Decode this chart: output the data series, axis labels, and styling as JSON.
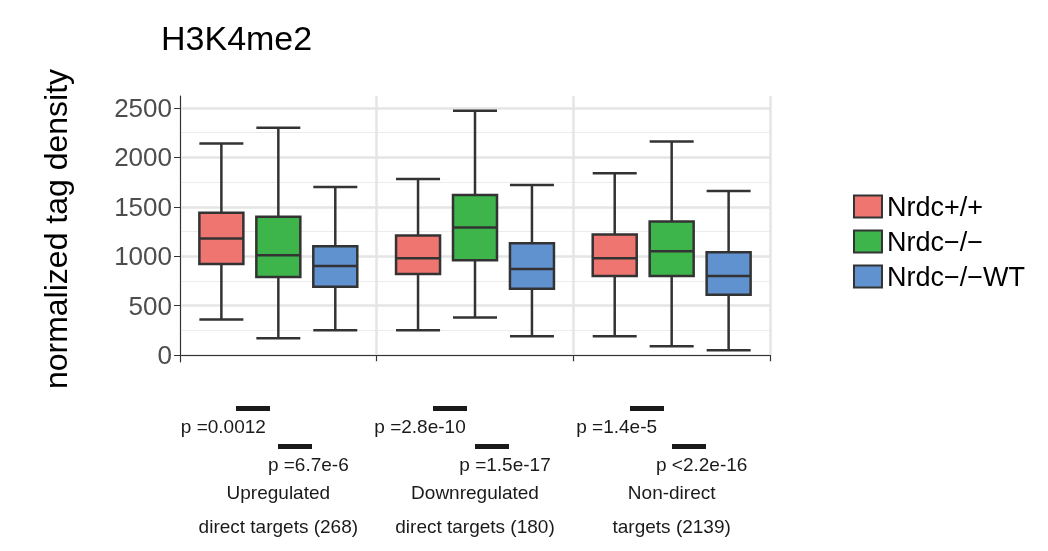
{
  "chart_data": {
    "type": "box",
    "title": "H3K4me2",
    "ylabel": "normalized tag density",
    "categories": [
      "Upregulated\ndirect targets (268)",
      "Downregulated\ndirect targets (180)",
      "Non-direct\ntargets (2139)"
    ],
    "series": [
      {
        "name": "Nrdc+/+",
        "color": "#ef7670",
        "boxes": [
          {
            "low": 360,
            "q1": 920,
            "median": 1180,
            "q3": 1440,
            "high": 2140
          },
          {
            "low": 250,
            "q1": 820,
            "median": 980,
            "q3": 1210,
            "high": 1780
          },
          {
            "low": 190,
            "q1": 800,
            "median": 980,
            "q3": 1220,
            "high": 1840
          }
        ]
      },
      {
        "name": "Nrdc−/−",
        "color": "#3db54b",
        "boxes": [
          {
            "low": 170,
            "q1": 790,
            "median": 1010,
            "q3": 1400,
            "high": 2300
          },
          {
            "low": 380,
            "q1": 960,
            "median": 1290,
            "q3": 1620,
            "high": 2470
          },
          {
            "low": 90,
            "q1": 800,
            "median": 1050,
            "q3": 1350,
            "high": 2160
          }
        ]
      },
      {
        "name": "Nrdc−/−WT",
        "color": "#6192d0",
        "boxes": [
          {
            "low": 250,
            "q1": 690,
            "median": 900,
            "q3": 1100,
            "high": 1700
          },
          {
            "low": 190,
            "q1": 670,
            "median": 870,
            "q3": 1130,
            "high": 1720
          },
          {
            "low": 50,
            "q1": 610,
            "median": 800,
            "q3": 1040,
            "high": 1660
          }
        ]
      }
    ],
    "ylim": [
      -70,
      2620
    ],
    "yticks": [
      0,
      500,
      1000,
      1500,
      2000,
      2500
    ],
    "grid": true,
    "legend": "right",
    "annotations": [
      "p =0.0012",
      "p =6.7e-6",
      "p =2.8e-10",
      "p =1.5e-17",
      "p =1.4e-5",
      "p <2.2e-16"
    ]
  }
}
